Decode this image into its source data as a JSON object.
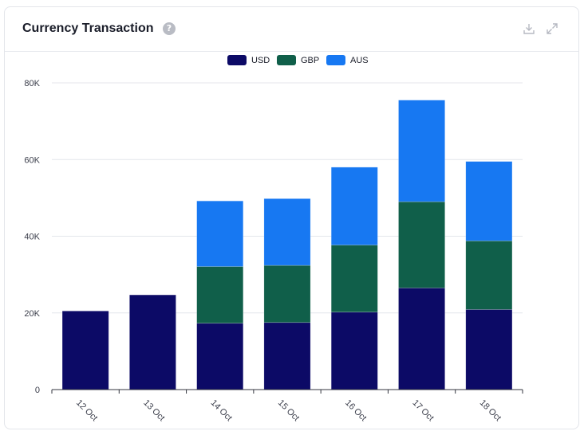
{
  "card": {
    "title": "Currency Transaction",
    "help_icon": "question-circle-icon",
    "help_glyph": "?",
    "toolbar": [
      "download-icon",
      "expand-icon"
    ]
  },
  "chart_data": {
    "type": "bar",
    "stacked": true,
    "title": "Currency Transaction",
    "categories": [
      "12 Oct",
      "13 Oct",
      "14 Oct",
      "15 Oct",
      "16 Oct",
      "17 Oct",
      "18 Oct"
    ],
    "series": [
      {
        "name": "USD",
        "color": "#0c0a66",
        "values": [
          20500,
          24700,
          17300,
          17500,
          20200,
          26500,
          20900
        ]
      },
      {
        "name": "GBP",
        "color": "#105f4a",
        "values": [
          0,
          0,
          14800,
          14900,
          17500,
          22500,
          17900
        ]
      },
      {
        "name": "AUS",
        "color": "#1778f2",
        "values": [
          0,
          0,
          17100,
          17400,
          20300,
          26500,
          20700
        ]
      }
    ],
    "ylim": [
      0,
      80000
    ],
    "yticks": [
      0,
      20000,
      40000,
      60000,
      80000
    ],
    "ytick_labels": [
      "0",
      "20K",
      "40K",
      "60K",
      "80K"
    ],
    "grid": true,
    "legend_position": "top-center",
    "xlabel": "",
    "ylabel": ""
  }
}
